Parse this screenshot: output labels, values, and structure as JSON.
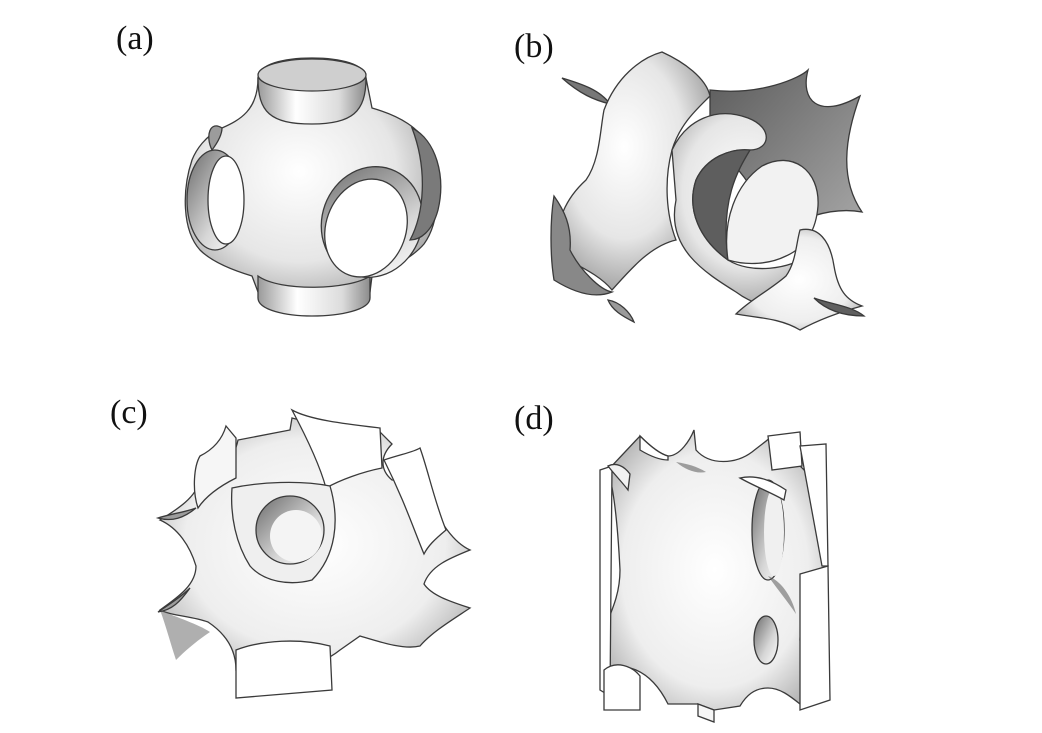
{
  "figure": {
    "panels": [
      {
        "id": "a",
        "label": "(a)"
      },
      {
        "id": "b",
        "label": "(b)"
      },
      {
        "id": "c",
        "label": "(c)"
      },
      {
        "id": "d",
        "label": "(d)"
      }
    ],
    "colors": {
      "surface_light": "#ffffff",
      "surface_mid": "#c8c8c8",
      "surface_dark": "#6e6e6e",
      "edge": "#3a3a3a",
      "label": "#111111"
    }
  }
}
